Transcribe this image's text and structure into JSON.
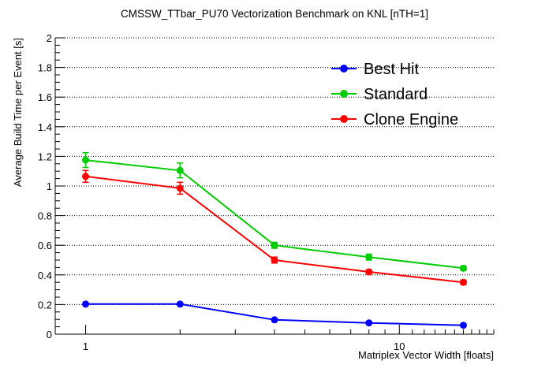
{
  "chart_data": {
    "type": "line",
    "title": "CMSSW_TTbar_PU70 Vectorization Benchmark on KNL [nTH=1]",
    "xlabel": "Matriplex Vector Width [floats]",
    "ylabel": "Average Build Time per Event [s]",
    "x_scale": "log",
    "xlim": [
      0.8,
      20
    ],
    "ylim": [
      0,
      2
    ],
    "x_tick_labels": [
      "1",
      "10"
    ],
    "y_tick_labels": [
      "0",
      "0.2",
      "0.4",
      "0.6",
      "0.8",
      "1",
      "1.2",
      "1.4",
      "1.6",
      "1.8",
      "2"
    ],
    "grid_y": true,
    "legend_position": "top-right",
    "x": [
      1,
      2,
      4,
      8,
      16
    ],
    "series": [
      {
        "name": "Best Hit",
        "color": "#0000ff",
        "values": [
          0.203,
          0.203,
          0.097,
          0.076,
          0.06
        ],
        "errors": [
          0.004,
          0.004,
          0.003,
          0.003,
          0.003
        ]
      },
      {
        "name": "Standard",
        "color": "#00cc00",
        "values": [
          1.175,
          1.105,
          0.6,
          0.52,
          0.445
        ],
        "errors": [
          0.05,
          0.05,
          0.02,
          0.02,
          0.015
        ]
      },
      {
        "name": "Clone Engine",
        "color": "#ff0000",
        "values": [
          1.065,
          0.985,
          0.5,
          0.42,
          0.35
        ],
        "errors": [
          0.04,
          0.04,
          0.02,
          0.015,
          0.015
        ]
      }
    ]
  }
}
